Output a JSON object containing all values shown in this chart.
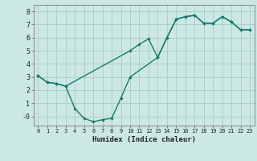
{
  "xlabel": "Humidex (Indice chaleur)",
  "bg_color": "#cbe8e3",
  "grid_color": "#a8ccc8",
  "line_color": "#1a7a6e",
  "xlim": [
    -0.5,
    23.5
  ],
  "ylim": [
    -0.7,
    8.5
  ],
  "yticks": [
    0,
    1,
    2,
    3,
    4,
    5,
    6,
    7,
    8
  ],
  "ytick_labels": [
    "-0",
    "1",
    "2",
    "3",
    "4",
    "5",
    "6",
    "7",
    "8"
  ],
  "xticks": [
    0,
    1,
    2,
    3,
    4,
    5,
    6,
    7,
    8,
    9,
    10,
    11,
    12,
    13,
    14,
    15,
    16,
    17,
    18,
    19,
    20,
    21,
    22,
    23
  ],
  "line1_x": [
    0,
    1,
    2,
    3,
    10,
    11,
    12,
    13,
    14,
    15,
    16,
    17,
    18,
    19,
    20,
    21,
    22,
    23
  ],
  "line1_y": [
    3.1,
    2.6,
    2.5,
    2.3,
    5.0,
    5.5,
    5.9,
    4.5,
    6.0,
    7.4,
    7.6,
    7.7,
    7.1,
    7.1,
    7.6,
    7.2,
    6.6,
    6.6
  ],
  "line2_x": [
    0,
    1,
    2,
    3,
    4,
    5,
    6,
    7,
    8,
    9,
    10,
    13,
    14,
    15,
    16,
    17,
    18,
    19,
    20,
    21,
    22,
    23
  ],
  "line2_y": [
    3.1,
    2.6,
    2.5,
    2.3,
    0.6,
    -0.15,
    -0.4,
    -0.25,
    -0.15,
    1.4,
    3.0,
    4.5,
    6.0,
    7.4,
    7.6,
    7.7,
    7.1,
    7.1,
    7.6,
    7.2,
    6.6,
    6.6
  ]
}
